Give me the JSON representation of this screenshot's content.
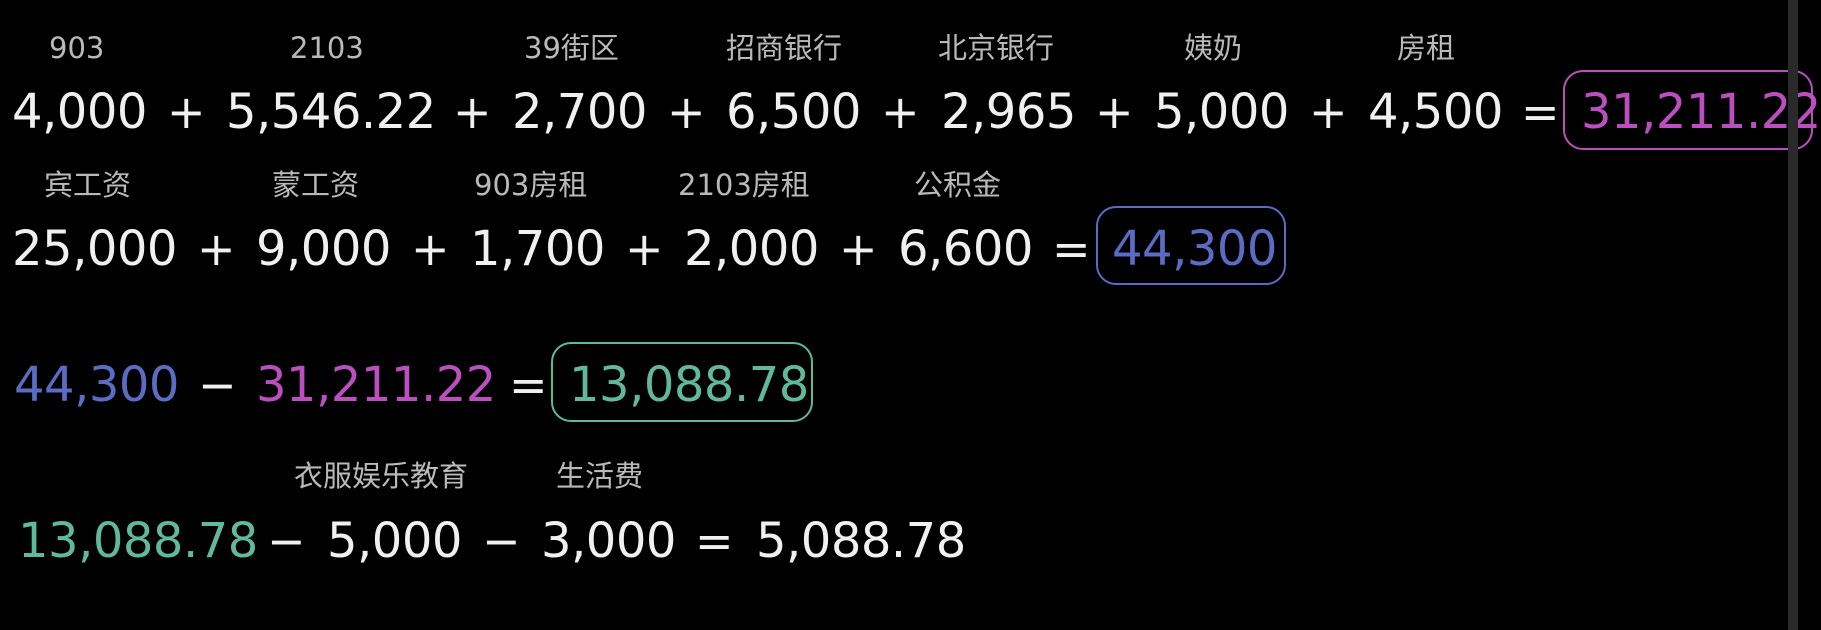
{
  "colors": {
    "background": "#000000",
    "text": "#f0f0f0",
    "label": "#b9b9b9",
    "expenses": "#bb4fc0",
    "income": "#5a6cc4",
    "balance": "#5fb99a"
  },
  "expenses": {
    "labels": [
      "903",
      "2103",
      "39街区",
      "招商银行",
      "北京银行",
      "姨奶",
      "房租"
    ],
    "values": [
      "4,000",
      "5,546.22",
      "2,700",
      "6,500",
      "2,965",
      "5,000",
      "4,500"
    ],
    "plus": "+",
    "equals": "=",
    "total": "31,211.22"
  },
  "income": {
    "labels": [
      "宾工资",
      "蒙工资",
      "903房租",
      "2103房租",
      "公积金"
    ],
    "values": [
      "25,000",
      "9,000",
      "1,700",
      "2,000",
      "6,600"
    ],
    "plus": "+",
    "equals": "=",
    "total": "44,300"
  },
  "balance": {
    "income": "44,300",
    "minus": "−",
    "expenses": "31,211.22",
    "equals": "=",
    "result": "13,088.78"
  },
  "remaining": {
    "labels": [
      "衣服娱乐教育",
      "生活费"
    ],
    "start": "13,088.78",
    "minus": "−",
    "values": [
      "5,000",
      "3,000"
    ],
    "equals": "=",
    "result": "5,088.78"
  }
}
